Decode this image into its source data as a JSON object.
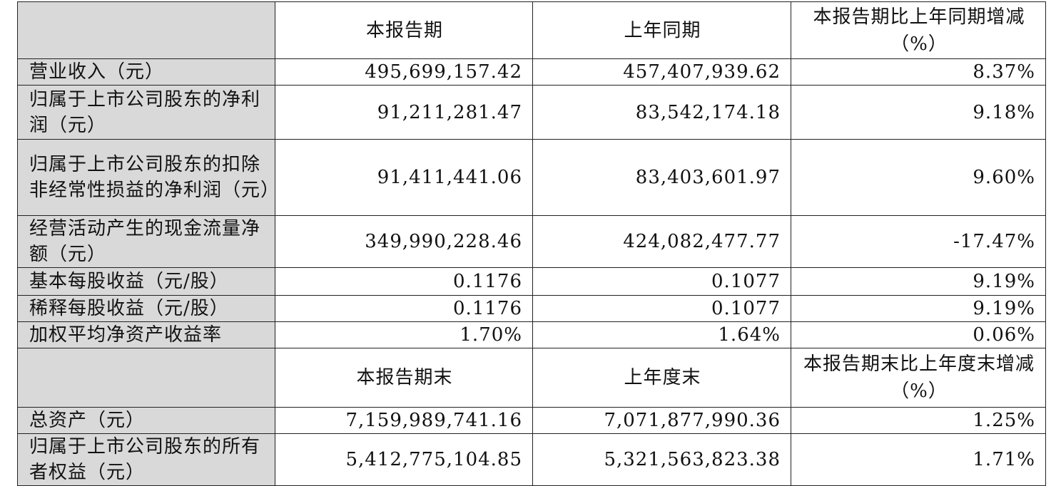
{
  "table": {
    "header1": [
      "本报告期",
      "上年同期",
      [
        "本报告期比上年同期增减",
        "（%）"
      ]
    ],
    "rows1": [
      [
        "营业收入（元）",
        "495,699,157.42",
        "457,407,939.62",
        "8.37%"
      ],
      [
        "归属于上市公司股东的净利润（元）",
        "91,211,281.47",
        "83,542,174.18",
        "9.18%"
      ],
      [
        "归属于上市公司股东的扣除非经常性损益的净利润（元）",
        "91,411,441.06",
        "83,403,601.97",
        "9.60%"
      ],
      [
        "经营活动产生的现金流量净额（元）",
        "349,990,228.46",
        "424,082,477.77",
        "-17.47%"
      ],
      [
        "基本每股收益（元/股）",
        "0.1176",
        "0.1077",
        "9.19%"
      ],
      [
        "稀释每股收益（元/股）",
        "0.1176",
        "0.1077",
        "9.19%"
      ],
      [
        "加权平均净资产收益率",
        "1.70%",
        "1.64%",
        "0.06%"
      ]
    ],
    "header2": [
      "本报告期末",
      "上年度末",
      [
        "本报告期末比上年度末增减",
        "（%）"
      ]
    ],
    "rows2": [
      [
        "总资产（元）",
        "7,159,989,741.16",
        "7,071,877,990.36",
        "1.25%"
      ],
      [
        "归属于上市公司股东的所有者权益（元）",
        "5,412,775,104.85",
        "5,321,563,823.38",
        "1.71%"
      ]
    ]
  }
}
